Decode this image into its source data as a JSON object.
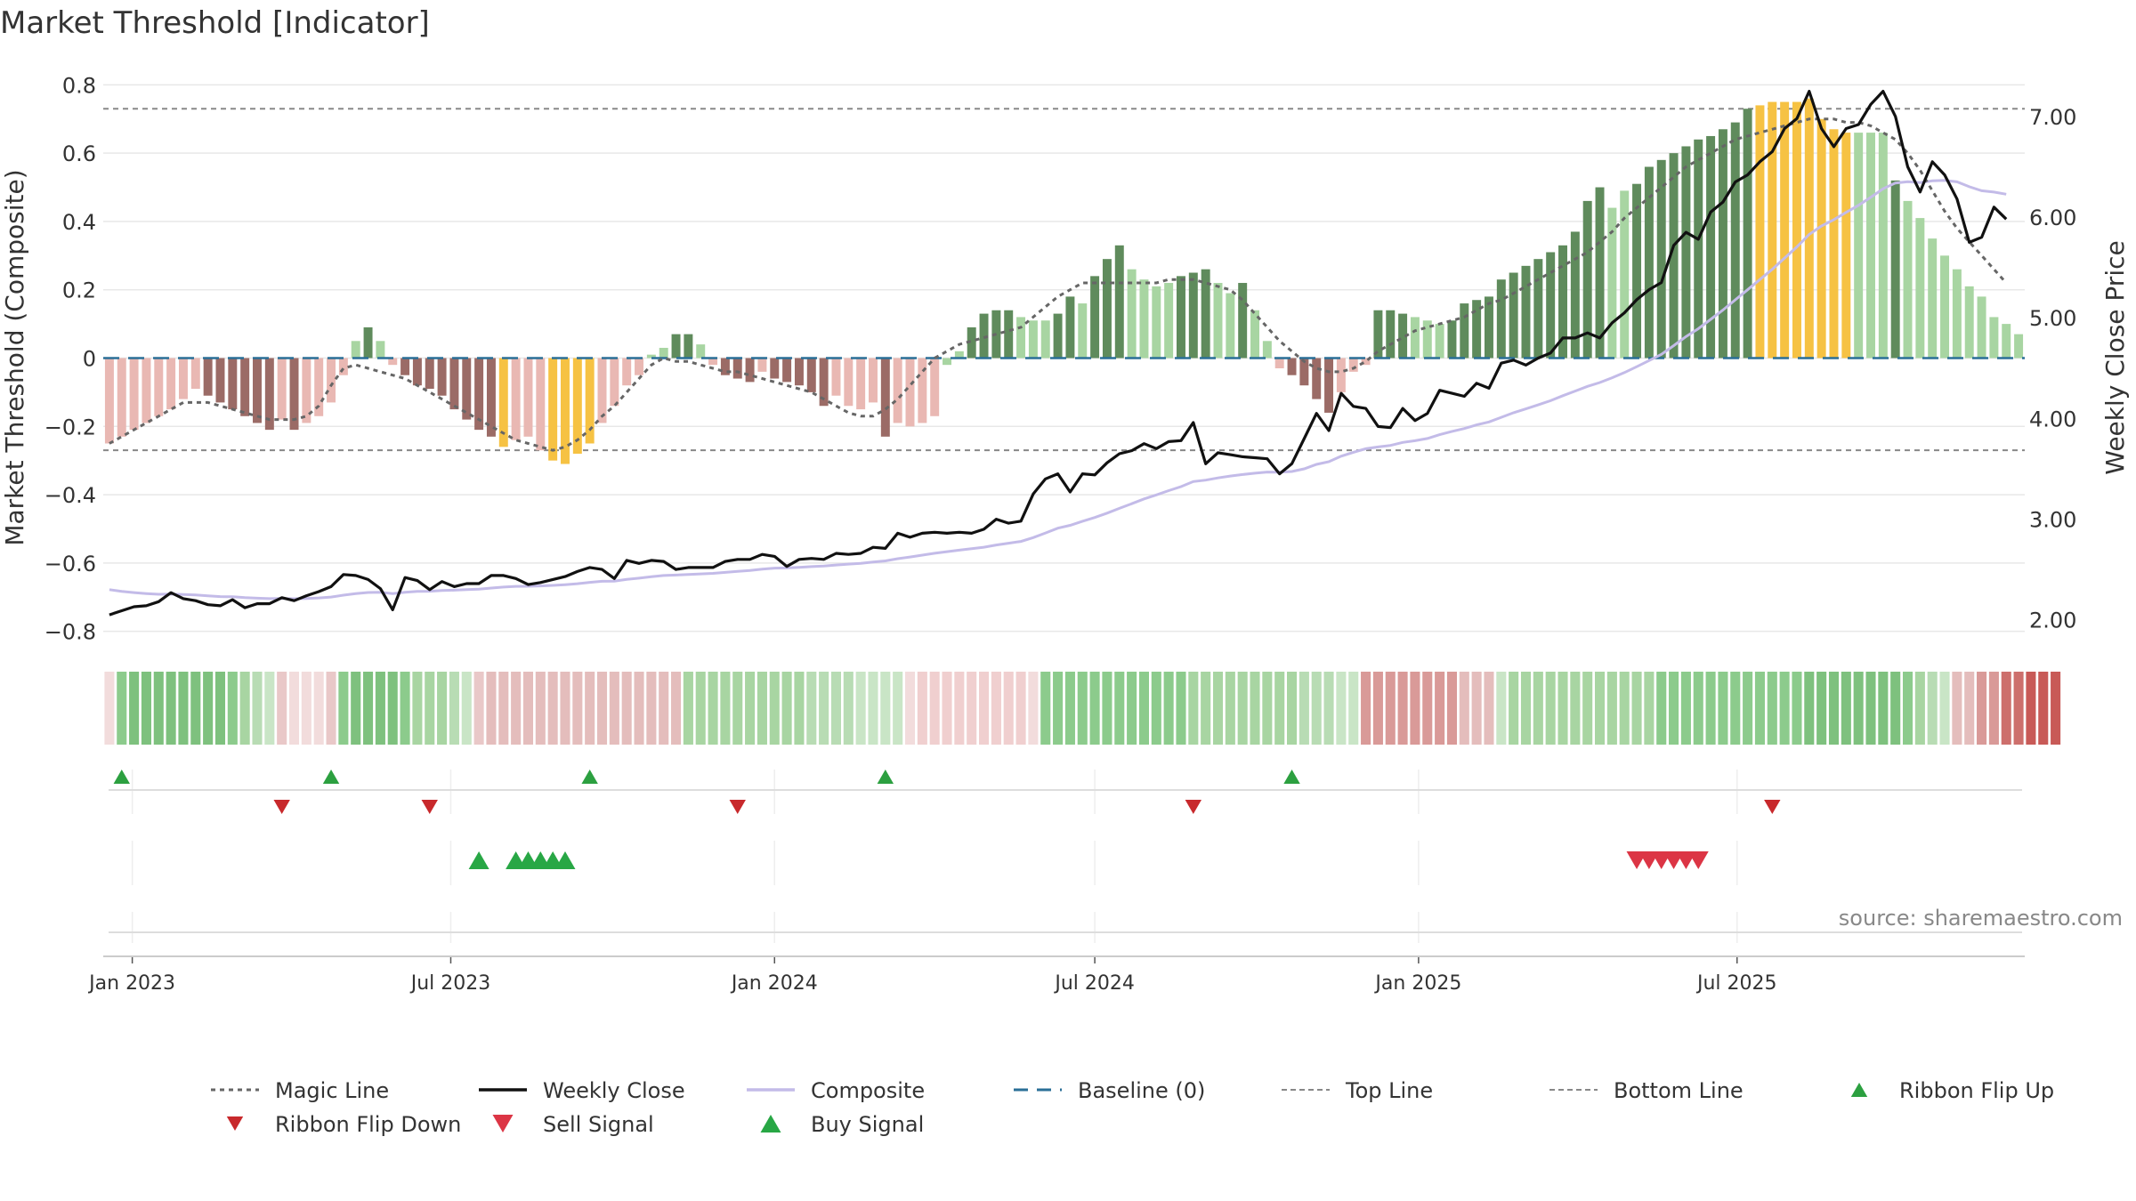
{
  "title": "Market Threshold [Indicator]",
  "source": "source: sharemaestro.com",
  "chart_data": {
    "type": "bar",
    "title": "Market Threshold [Indicator]",
    "ylabel": "Market Threshold (Composite)",
    "y2label": "Weekly Close Price",
    "ylim": [
      -0.84,
      0.84
    ],
    "y2lim": [
      1.75,
      7.45
    ],
    "yticks": [
      "0.8",
      "0.6",
      "0.4",
      "0.2",
      "0",
      "−0.2",
      "−0.4",
      "−0.6",
      "−0.8"
    ],
    "y2ticks": [
      "7.00",
      "6.00",
      "5.00",
      "4.00",
      "3.00",
      "2.00"
    ],
    "x_start": "2022-12-19",
    "x_ticks": [
      {
        "label": "Jan 2023",
        "date": "2023-01-01"
      },
      {
        "label": "Jul 2023",
        "date": "2023-07-01"
      },
      {
        "label": "Jan 2024",
        "date": "2024-01-01"
      },
      {
        "label": "Jul 2024",
        "date": "2024-07-01"
      },
      {
        "label": "Jan 2025",
        "date": "2025-01-01"
      },
      {
        "label": "Jul 2025",
        "date": "2025-07-01"
      }
    ],
    "top_line": 0.73,
    "bottom_line": -0.27,
    "composite": [
      -0.25,
      -0.23,
      -0.21,
      -0.19,
      -0.17,
      -0.15,
      -0.12,
      -0.09,
      -0.11,
      -0.13,
      -0.15,
      -0.17,
      -0.19,
      -0.21,
      -0.18,
      -0.21,
      -0.19,
      -0.17,
      -0.13,
      -0.05,
      0.05,
      0.09,
      0.05,
      -0.02,
      -0.05,
      -0.08,
      -0.09,
      -0.11,
      -0.15,
      -0.18,
      -0.21,
      -0.23,
      -0.26,
      -0.24,
      -0.23,
      -0.27,
      -0.3,
      -0.31,
      -0.28,
      -0.25,
      -0.19,
      -0.14,
      -0.08,
      -0.05,
      0.01,
      0.03,
      0.07,
      0.07,
      0.04,
      -0.02,
      -0.05,
      -0.06,
      -0.07,
      -0.04,
      -0.06,
      -0.07,
      -0.08,
      -0.1,
      -0.14,
      -0.11,
      -0.14,
      -0.15,
      -0.13,
      -0.23,
      -0.19,
      -0.2,
      -0.19,
      -0.17,
      -0.02,
      0.02,
      0.09,
      0.13,
      0.14,
      0.14,
      0.12,
      0.11,
      0.11,
      0.13,
      0.18,
      0.16,
      0.24,
      0.29,
      0.33,
      0.26,
      0.23,
      0.21,
      0.22,
      0.24,
      0.25,
      0.26,
      0.22,
      0.19,
      0.22,
      0.14,
      0.05,
      -0.03,
      -0.05,
      -0.08,
      -0.12,
      -0.16,
      -0.1,
      -0.04,
      -0.02,
      0.14,
      0.14,
      0.13,
      0.12,
      0.11,
      0.1,
      0.11,
      0.16,
      0.17,
      0.18,
      0.23,
      0.25,
      0.27,
      0.29,
      0.31,
      0.33,
      0.37,
      0.46,
      0.5,
      0.44,
      0.49,
      0.51,
      0.56,
      0.58,
      0.6,
      0.62,
      0.64,
      0.65,
      0.67,
      0.69,
      0.73,
      0.74,
      0.75,
      0.75,
      0.75,
      0.76,
      0.7,
      0.67,
      0.66,
      0.66,
      0.66,
      0.66,
      0.52,
      0.46,
      0.41,
      0.35,
      0.3,
      0.26,
      0.21,
      0.18,
      0.12,
      0.1,
      0.07
    ],
    "bar_colors": [
      "#e9b8b3",
      "#e9b8b3",
      "#e9b8b3",
      "#e9b8b3",
      "#e9b8b3",
      "#e9b8b3",
      "#e9b8b3",
      "#e9b8b3",
      "#9b6b66",
      "#9b6b66",
      "#9b6b66",
      "#9b6b66",
      "#9b6b66",
      "#9b6b66",
      "#e9b8b3",
      "#9b6b66",
      "#e9b8b3",
      "#e9b8b3",
      "#e9b8b3",
      "#e9b8b3",
      "#a8d5a2",
      "#5f8b5c",
      "#a8d5a2",
      "#e9b8b3",
      "#9b6b66",
      "#9b6b66",
      "#9b6b66",
      "#9b6b66",
      "#9b6b66",
      "#9b6b66",
      "#9b6b66",
      "#9b6b66",
      "#f6c243",
      "#e9b8b3",
      "#e9b8b3",
      "#e9b8b3",
      "#f6c243",
      "#f6c243",
      "#f6c243",
      "#f6c243",
      "#e9b8b3",
      "#e9b8b3",
      "#e9b8b3",
      "#e9b8b3",
      "#a8d5a2",
      "#a8d5a2",
      "#5f8b5c",
      "#5f8b5c",
      "#a8d5a2",
      "#e9b8b3",
      "#9b6b66",
      "#9b6b66",
      "#9b6b66",
      "#e9b8b3",
      "#9b6b66",
      "#9b6b66",
      "#9b6b66",
      "#9b6b66",
      "#9b6b66",
      "#e9b8b3",
      "#e9b8b3",
      "#e9b8b3",
      "#e9b8b3",
      "#9b6b66",
      "#e9b8b3",
      "#e9b8b3",
      "#e9b8b3",
      "#e9b8b3",
      "#a8d5a2",
      "#a8d5a2",
      "#5f8b5c",
      "#5f8b5c",
      "#5f8b5c",
      "#5f8b5c",
      "#a8d5a2",
      "#a8d5a2",
      "#a8d5a2",
      "#5f8b5c",
      "#5f8b5c",
      "#a8d5a2",
      "#5f8b5c",
      "#5f8b5c",
      "#5f8b5c",
      "#a8d5a2",
      "#a8d5a2",
      "#a8d5a2",
      "#a8d5a2",
      "#5f8b5c",
      "#5f8b5c",
      "#5f8b5c",
      "#a8d5a2",
      "#a8d5a2",
      "#5f8b5c",
      "#a8d5a2",
      "#a8d5a2",
      "#e9b8b3",
      "#9b6b66",
      "#9b6b66",
      "#9b6b66",
      "#9b6b66",
      "#e9b8b3",
      "#e9b8b3",
      "#e9b8b3",
      "#5f8b5c",
      "#5f8b5c",
      "#5f8b5c",
      "#a8d5a2",
      "#a8d5a2",
      "#a8d5a2",
      "#5f8b5c",
      "#5f8b5c",
      "#5f8b5c",
      "#5f8b5c",
      "#5f8b5c",
      "#5f8b5c",
      "#5f8b5c",
      "#5f8b5c",
      "#5f8b5c",
      "#5f8b5c",
      "#5f8b5c",
      "#5f8b5c",
      "#5f8b5c",
      "#a8d5a2",
      "#a8d5a2",
      "#5f8b5c",
      "#5f8b5c",
      "#5f8b5c",
      "#5f8b5c",
      "#5f8b5c",
      "#5f8b5c",
      "#5f8b5c",
      "#5f8b5c",
      "#5f8b5c",
      "#5f8b5c",
      "#f6c243",
      "#f6c243",
      "#f6c243",
      "#f6c243",
      "#f6c243",
      "#f6c243",
      "#f6c243",
      "#f6c243",
      "#a8d5a2",
      "#a8d5a2",
      "#a8d5a2",
      "#5f8b5c",
      "#a8d5a2",
      "#a8d5a2",
      "#a8d5a2",
      "#a8d5a2",
      "#a8d5a2",
      "#a8d5a2",
      "#a8d5a2",
      "#a8d5a2",
      "#a8d5a2",
      "#a8d5a2"
    ],
    "magic_line": [
      -0.25,
      -0.23,
      -0.21,
      -0.19,
      -0.17,
      -0.15,
      -0.13,
      -0.13,
      -0.13,
      -0.14,
      -0.15,
      -0.16,
      -0.17,
      -0.18,
      -0.18,
      -0.18,
      -0.17,
      -0.14,
      -0.08,
      -0.03,
      -0.02,
      -0.03,
      -0.04,
      -0.05,
      -0.06,
      -0.08,
      -0.1,
      -0.12,
      -0.14,
      -0.16,
      -0.18,
      -0.2,
      -0.22,
      -0.24,
      -0.25,
      -0.26,
      -0.27,
      -0.26,
      -0.24,
      -0.21,
      -0.17,
      -0.14,
      -0.1,
      -0.06,
      -0.02,
      0.0,
      -0.01,
      -0.01,
      -0.02,
      -0.03,
      -0.04,
      -0.04,
      -0.05,
      -0.06,
      -0.07,
      -0.08,
      -0.09,
      -0.1,
      -0.12,
      -0.14,
      -0.16,
      -0.17,
      -0.17,
      -0.15,
      -0.12,
      -0.08,
      -0.04,
      0.0,
      0.02,
      0.04,
      0.05,
      0.06,
      0.07,
      0.08,
      0.09,
      0.12,
      0.15,
      0.18,
      0.2,
      0.22,
      0.22,
      0.22,
      0.22,
      0.22,
      0.22,
      0.22,
      0.23,
      0.23,
      0.23,
      0.22,
      0.21,
      0.2,
      0.17,
      0.13,
      0.09,
      0.05,
      0.02,
      -0.01,
      -0.03,
      -0.04,
      -0.04,
      -0.03,
      -0.01,
      0.02,
      0.04,
      0.06,
      0.08,
      0.09,
      0.1,
      0.11,
      0.12,
      0.14,
      0.16,
      0.17,
      0.19,
      0.21,
      0.23,
      0.25,
      0.27,
      0.29,
      0.31,
      0.34,
      0.37,
      0.41,
      0.44,
      0.47,
      0.5,
      0.53,
      0.56,
      0.58,
      0.6,
      0.62,
      0.64,
      0.65,
      0.66,
      0.67,
      0.68,
      0.69,
      0.7,
      0.7,
      0.7,
      0.69,
      0.69,
      0.68,
      0.66,
      0.64,
      0.6,
      0.55,
      0.49,
      0.43,
      0.38,
      0.34,
      0.3,
      0.26,
      0.22
    ],
    "weekly_close": [
      2.05,
      2.09,
      2.13,
      2.14,
      2.18,
      2.27,
      2.21,
      2.19,
      2.15,
      2.14,
      2.2,
      2.12,
      2.16,
      2.16,
      2.22,
      2.19,
      2.24,
      2.28,
      2.33,
      2.45,
      2.44,
      2.4,
      2.31,
      2.1,
      2.42,
      2.39,
      2.3,
      2.38,
      2.33,
      2.36,
      2.36,
      2.44,
      2.44,
      2.41,
      2.35,
      2.37,
      2.4,
      2.43,
      2.48,
      2.52,
      2.5,
      2.41,
      2.59,
      2.56,
      2.59,
      2.58,
      2.5,
      2.52,
      2.52,
      2.52,
      2.58,
      2.6,
      2.6,
      2.65,
      2.63,
      2.53,
      2.6,
      2.61,
      2.6,
      2.66,
      2.65,
      2.66,
      2.72,
      2.71,
      2.86,
      2.82,
      2.86,
      2.87,
      2.86,
      2.87,
      2.86,
      2.9,
      3.0,
      2.96,
      2.98,
      3.25,
      3.4,
      3.45,
      3.27,
      3.45,
      3.44,
      3.56,
      3.65,
      3.68,
      3.75,
      3.7,
      3.77,
      3.78,
      3.96,
      3.55,
      3.66,
      3.64,
      3.62,
      3.61,
      3.6,
      3.45,
      3.55,
      3.8,
      4.05,
      3.88,
      4.25,
      4.12,
      4.1,
      3.92,
      3.91,
      4.1,
      3.98,
      4.05,
      4.28,
      4.25,
      4.22,
      4.35,
      4.3,
      4.55,
      4.58,
      4.53,
      4.6,
      4.65,
      4.8,
      4.8,
      4.85,
      4.8,
      4.95,
      5.05,
      5.18,
      5.28,
      5.35,
      5.72,
      5.85,
      5.78,
      6.05,
      6.15,
      6.35,
      6.42,
      6.55,
      6.65,
      6.88,
      6.98,
      7.25,
      6.88,
      6.7,
      6.88,
      6.92,
      7.12,
      7.25,
      7.0,
      6.5,
      6.25,
      6.55,
      6.42,
      6.18,
      5.75,
      5.8,
      6.1,
      5.98
    ],
    "series": [
      {
        "name": "Magic Line"
      },
      {
        "name": "Weekly Close"
      },
      {
        "name": "Composite"
      },
      {
        "name": "Baseline (0)"
      },
      {
        "name": "Top Line"
      },
      {
        "name": "Bottom Line"
      },
      {
        "name": "Ribbon Flip Up"
      },
      {
        "name": "Ribbon Flip Down"
      },
      {
        "name": "Sell Signal"
      },
      {
        "name": "Buy Signal"
      }
    ],
    "ribbon_colors": [
      "#f2dcdc",
      "#8ccb8c",
      "#7ec17e",
      "#7ec17e",
      "#7ec17e",
      "#7ec17e",
      "#7ec17e",
      "#7ec17e",
      "#7ec17e",
      "#7ec17e",
      "#8ccb8c",
      "#a8d5a2",
      "#b8dcb4",
      "#c9e5c6",
      "#e9c8c8",
      "#f2dcdc",
      "#f2dcdc",
      "#f2dcdc",
      "#e9c8c8",
      "#8ccb8c",
      "#7ec17e",
      "#7ec17e",
      "#7ec17e",
      "#7ec17e",
      "#8ccb8c",
      "#a8d5a2",
      "#a8d5a2",
      "#a8d5a2",
      "#b8dcb4",
      "#c9e5c6",
      "#e9c8c8",
      "#e4bdbc",
      "#e4bdbc",
      "#e4bdbc",
      "#e4bdbc",
      "#e4bdbc",
      "#e4bdbc",
      "#e4bdbc",
      "#e4bdbc",
      "#e4bdbc",
      "#e4bdbc",
      "#e4bdbc",
      "#e4bdbc",
      "#e4bdbc",
      "#e4bdbc",
      "#e4bdbc",
      "#e4bdbc",
      "#a8d5a2",
      "#a8d5a2",
      "#a8d5a2",
      "#a8d5a2",
      "#a8d5a2",
      "#a8d5a2",
      "#a8d5a2",
      "#a8d5a2",
      "#a8d5a2",
      "#a8d5a2",
      "#b8dcb4",
      "#b8dcb4",
      "#b8dcb4",
      "#b8dcb4",
      "#c9e5c6",
      "#c9e5c6",
      "#c9e5c6",
      "#c9e5c6",
      "#f2dcdc",
      "#f0cfcf",
      "#f0cfcf",
      "#f0cfcf",
      "#f0cfcf",
      "#f0cfcf",
      "#f0cfcf",
      "#f0cfcf",
      "#f0cfcf",
      "#f0cfcf",
      "#f2dcdc",
      "#8ccb8c",
      "#8ccb8c",
      "#8ccb8c",
      "#8ccb8c",
      "#8ccb8c",
      "#8ccb8c",
      "#8ccb8c",
      "#8ccb8c",
      "#8ccb8c",
      "#8ccb8c",
      "#8ccb8c",
      "#8ccb8c",
      "#a8d5a2",
      "#a8d5a2",
      "#a8d5a2",
      "#a8d5a2",
      "#a8d5a2",
      "#a8d5a2",
      "#a8d5a2",
      "#a8d5a2",
      "#a8d5a2",
      "#b8dcb4",
      "#b8dcb4",
      "#b8dcb4",
      "#c9e5c6",
      "#c9e5c6",
      "#d99a98",
      "#d99a98",
      "#d99a98",
      "#d99a98",
      "#d99a98",
      "#d99a98",
      "#d99a98",
      "#d99a98",
      "#e4bdbc",
      "#e4bdbc",
      "#e4bdbc",
      "#c9e5c6",
      "#a8d5a2",
      "#a8d5a2",
      "#a8d5a2",
      "#a8d5a2",
      "#a8d5a2",
      "#a8d5a2",
      "#a8d5a2",
      "#a8d5a2",
      "#a8d5a2",
      "#a8d5a2",
      "#a8d5a2",
      "#a8d5a2",
      "#8ccb8c",
      "#8ccb8c",
      "#8ccb8c",
      "#8ccb8c",
      "#8ccb8c",
      "#8ccb8c",
      "#8ccb8c",
      "#8ccb8c",
      "#8ccb8c",
      "#8ccb8c",
      "#8ccb8c",
      "#8ccb8c",
      "#7ec17e",
      "#7ec17e",
      "#7ec17e",
      "#7ec17e",
      "#7ec17e",
      "#7ec17e",
      "#7ec17e",
      "#7ec17e",
      "#8ccb8c",
      "#a8d5a2",
      "#b8dcb4",
      "#c9e5c6",
      "#e4bdbc",
      "#e4bdbc",
      "#d99a98",
      "#d99a98",
      "#cd6f6c",
      "#cd6f6c",
      "#c85a57",
      "#c85a57",
      "#c85a57"
    ],
    "ribbon_flip_up": [
      "2022-12-26",
      "2023-04-24",
      "2023-09-18",
      "2024-03-04",
      "2024-10-21"
    ],
    "ribbon_flip_down": [
      "2023-03-27",
      "2023-06-19",
      "2023-12-11",
      "2024-08-26",
      "2025-07-21"
    ],
    "buy_signal": [
      "2023-07-17",
      "2023-08-07",
      "2023-08-14",
      "2023-08-21",
      "2023-08-28",
      "2023-09-04"
    ],
    "sell_signal": [
      "2025-05-05",
      "2025-05-12",
      "2025-05-19",
      "2025-05-26",
      "2025-06-02",
      "2025-06-09"
    ],
    "legend_position": "bottom"
  },
  "colors": {
    "magic_line": "#666666",
    "weekly_close": "#111111",
    "composite": "#c3bbe8",
    "baseline": "#2a6f97",
    "ref_line": "#888888",
    "flip_up": "#2ca040",
    "flip_down": "#c8292c",
    "sell": "#dc3545",
    "buy": "#28a745",
    "grid": "#e8e8e8",
    "source": "#888888"
  }
}
